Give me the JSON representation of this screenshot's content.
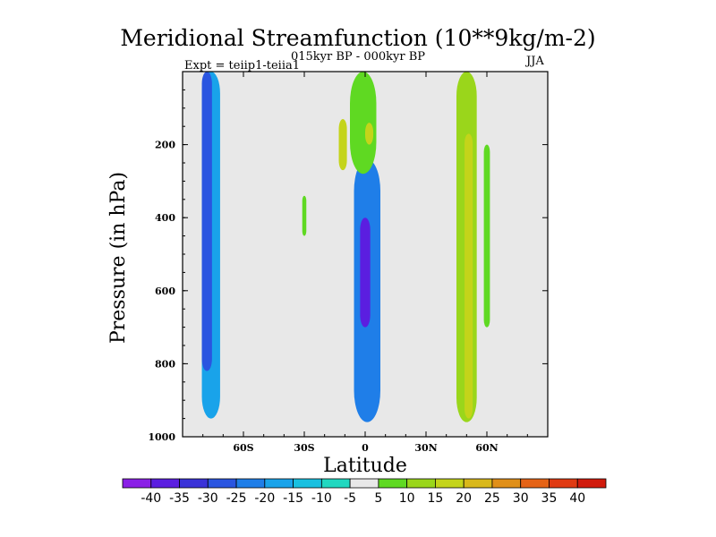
{
  "chart_data": {
    "type": "heatmap",
    "title": "Meridional Streamfunction (10**9kg/m-2)",
    "subtitle": "015kyr BP - 000kyr BP",
    "left_label": "Expt = teiip1-teiia1",
    "right_label": "JJA",
    "xlabel": "Latitude",
    "ylabel": "Pressure (in hPa)",
    "xlim": [
      -90,
      90
    ],
    "ylim": [
      1000,
      0
    ],
    "x_ticks": [
      -60,
      -30,
      0,
      30,
      60
    ],
    "x_tick_labels": [
      "60S",
      "30S",
      "0",
      "30N",
      "60N"
    ],
    "y_ticks": [
      200,
      400,
      600,
      800,
      1000
    ],
    "y_tick_labels": [
      "200",
      "400",
      "600",
      "800",
      "1000"
    ],
    "colorbar": {
      "levels": [
        -40,
        -35,
        -30,
        -25,
        -20,
        -15,
        -10,
        -5,
        5,
        10,
        15,
        20,
        25,
        30,
        35,
        40
      ],
      "level_labels": [
        "-40",
        "-35",
        "-30",
        "-25",
        "-20",
        "-15",
        "-10",
        "-5",
        "5",
        "10",
        "15",
        "20",
        "25",
        "30",
        "35",
        "40"
      ],
      "colors": [
        "#8a1fe6",
        "#5b1ee0",
        "#3a32d8",
        "#2a55e0",
        "#1f7ee8",
        "#19a3ea",
        "#18c0e0",
        "#20d8c0",
        "#e8e8e8",
        "#5fd922",
        "#9ad61b",
        "#c4d41a",
        "#d9b81a",
        "#e08f18",
        "#e56316",
        "#e03a12",
        "#d11a0c"
      ]
    },
    "features": [
      {
        "lat": -76,
        "p_top": 0,
        "p_bottom": 950,
        "width": 9,
        "value": -20
      },
      {
        "lat": -78,
        "p_top": 0,
        "p_bottom": 820,
        "width": 5,
        "value": -28
      },
      {
        "lat": 1,
        "p_top": 240,
        "p_bottom": 960,
        "width": 13,
        "value": -22
      },
      {
        "lat": 0,
        "p_top": 400,
        "p_bottom": 700,
        "width": 5,
        "value": -36
      },
      {
        "lat": -1,
        "p_top": 0,
        "p_bottom": 280,
        "width": 13,
        "value": 8
      },
      {
        "lat": -11,
        "p_top": 130,
        "p_bottom": 270,
        "width": 4,
        "value": 18
      },
      {
        "lat": 2,
        "p_top": 140,
        "p_bottom": 200,
        "width": 4,
        "value": 18
      },
      {
        "lat": -30,
        "p_top": 340,
        "p_bottom": 450,
        "width": 2,
        "value": 6
      },
      {
        "lat": 50,
        "p_top": 0,
        "p_bottom": 960,
        "width": 10,
        "value": 10
      },
      {
        "lat": 51,
        "p_top": 170,
        "p_bottom": 950,
        "width": 4,
        "value": 18
      },
      {
        "lat": 60,
        "p_top": 200,
        "p_bottom": 700,
        "width": 3,
        "value": 5
      }
    ]
  }
}
